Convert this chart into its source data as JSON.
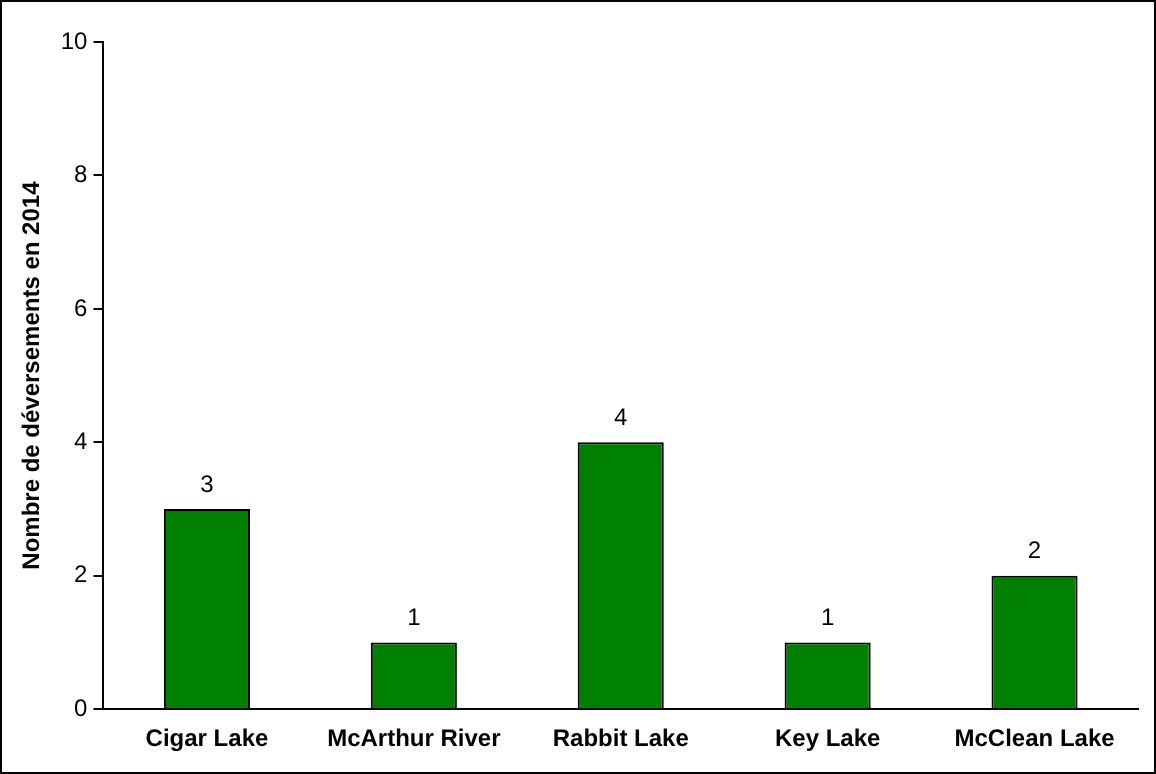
{
  "chart_data": {
    "type": "bar",
    "ylabel": "Nombre de déversements en 2014",
    "categories": [
      "Cigar Lake",
      "McArthur River",
      "Rabbit Lake",
      "Key Lake",
      "McClean Lake"
    ],
    "values": [
      3,
      1,
      4,
      1,
      2
    ],
    "color": "#008000",
    "ylim": [
      0,
      10
    ],
    "yticks": [
      0,
      2,
      4,
      6,
      8,
      10
    ],
    "grid": false,
    "data_labels": true
  }
}
